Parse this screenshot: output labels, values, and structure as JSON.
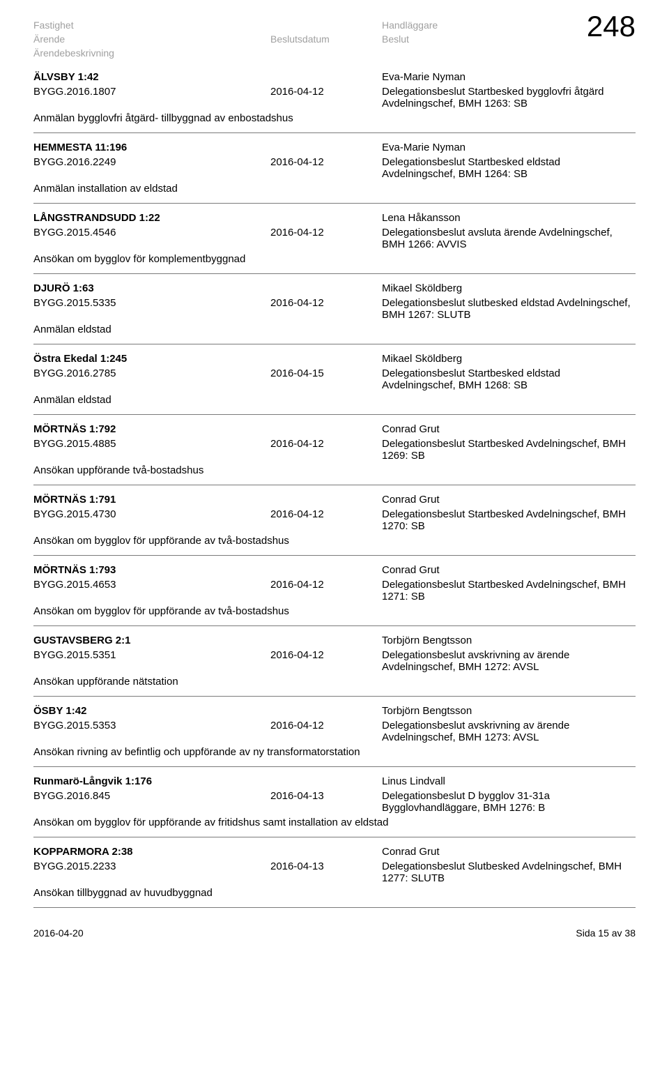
{
  "page_number": "248",
  "header": {
    "fastighet": "Fastighet",
    "arende": "Ärende",
    "arendebeskrivning": "Ärendebeskrivning",
    "beslutsdatum": "Beslutsdatum",
    "handlaggare": "Handläggare",
    "beslut": "Beslut"
  },
  "entries": [
    {
      "property": "ÄLVSBY 1:42",
      "handler": "Eva-Marie Nyman",
      "ref": "BYGG.2016.1807",
      "date": "2016-04-12",
      "decision": "Delegationsbeslut Startbesked bygglovfri åtgärd Avdelningschef, BMH 1263: SB",
      "description": "Anmälan bygglovfri åtgärd- tillbyggnad av enbostadshus"
    },
    {
      "property": "HEMMESTA 11:196",
      "handler": "Eva-Marie Nyman",
      "ref": "BYGG.2016.2249",
      "date": "2016-04-12",
      "decision": "Delegationsbeslut Startbesked eldstad Avdelningschef, BMH 1264: SB",
      "description": "Anmälan installation av eldstad"
    },
    {
      "property": "LÅNGSTRANDSUDD 1:22",
      "handler": "Lena Håkansson",
      "ref": "BYGG.2015.4546",
      "date": "2016-04-12",
      "decision": "Delegationsbeslut avsluta ärende Avdelningschef, BMH 1266: AVVIS",
      "description": "Ansökan om bygglov för komplementbyggnad"
    },
    {
      "property": "DJURÖ 1:63",
      "handler": "Mikael Sköldberg",
      "ref": "BYGG.2015.5335",
      "date": "2016-04-12",
      "decision": "Delegationsbeslut slutbesked eldstad Avdelningschef, BMH 1267: SLUTB",
      "description": "Anmälan eldstad"
    },
    {
      "property": "Östra Ekedal 1:245",
      "handler": "Mikael Sköldberg",
      "ref": "BYGG.2016.2785",
      "date": "2016-04-15",
      "decision": "Delegationsbeslut Startbesked eldstad Avdelningschef, BMH 1268: SB",
      "description": "Anmälan eldstad"
    },
    {
      "property": "MÖRTNÄS 1:792",
      "handler": "Conrad Grut",
      "ref": "BYGG.2015.4885",
      "date": "2016-04-12",
      "decision": "Delegationsbeslut Startbesked Avdelningschef, BMH 1269: SB",
      "description": "Ansökan uppförande två-bostadshus"
    },
    {
      "property": "MÖRTNÄS 1:791",
      "handler": "Conrad Grut",
      "ref": "BYGG.2015.4730",
      "date": "2016-04-12",
      "decision": "Delegationsbeslut Startbesked Avdelningschef, BMH 1270: SB",
      "description": "Ansökan om bygglov för uppförande av två-bostadshus"
    },
    {
      "property": "MÖRTNÄS 1:793",
      "handler": "Conrad Grut",
      "ref": "BYGG.2015.4653",
      "date": "2016-04-12",
      "decision": "Delegationsbeslut Startbesked Avdelningschef, BMH 1271: SB",
      "description": "Ansökan om bygglov för uppförande av två-bostadshus"
    },
    {
      "property": "GUSTAVSBERG 2:1",
      "handler": "Torbjörn Bengtsson",
      "ref": "BYGG.2015.5351",
      "date": "2016-04-12",
      "decision": "Delegationsbeslut avskrivning av ärende Avdelningschef, BMH 1272: AVSL",
      "description": "Ansökan uppförande nätstation"
    },
    {
      "property": "ÖSBY 1:42",
      "handler": "Torbjörn Bengtsson",
      "ref": "BYGG.2015.5353",
      "date": "2016-04-12",
      "decision": "Delegationsbeslut avskrivning av ärende Avdelningschef, BMH 1273: AVSL",
      "description": "Ansökan rivning av befintlig och uppförande av ny transformatorstation"
    },
    {
      "property": "Runmarö-Långvik 1:176",
      "handler": "Linus Lindvall",
      "ref": "BYGG.2016.845",
      "date": "2016-04-13",
      "decision": "Delegationsbeslut D bygglov 31-31a Bygglovhandläggare, BMH 1276: B",
      "description": "Ansökan om bygglov för uppförande av fritidshus samt installation av eldstad"
    },
    {
      "property": "KOPPARMORA 2:38",
      "handler": "Conrad Grut",
      "ref": "BYGG.2015.2233",
      "date": "2016-04-13",
      "decision": "Delegationsbeslut Slutbesked Avdelningschef, BMH 1277: SLUTB",
      "description": "Ansökan tillbyggnad av huvudbyggnad"
    }
  ],
  "footer": {
    "date": "2016-04-20",
    "pager": "Sida 15 av 38"
  }
}
